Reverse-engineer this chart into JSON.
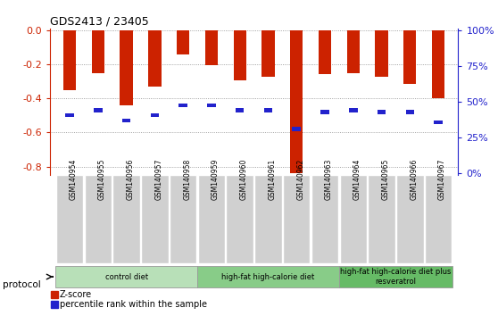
{
  "title": "GDS2413 / 23405",
  "samples": [
    "GSM140954",
    "GSM140955",
    "GSM140956",
    "GSM140957",
    "GSM140958",
    "GSM140959",
    "GSM140960",
    "GSM140961",
    "GSM140962",
    "GSM140963",
    "GSM140964",
    "GSM140965",
    "GSM140966",
    "GSM140967"
  ],
  "zscore": [
    -0.35,
    -0.255,
    -0.44,
    -0.33,
    -0.145,
    -0.205,
    -0.295,
    -0.275,
    -0.84,
    -0.26,
    -0.255,
    -0.275,
    -0.315,
    -0.4
  ],
  "percentile_zscore": [
    -0.5,
    -0.47,
    -0.53,
    -0.5,
    -0.44,
    -0.44,
    -0.47,
    -0.47,
    -0.58,
    -0.48,
    -0.47,
    -0.48,
    -0.48,
    -0.54
  ],
  "zscore_color": "#cc2200",
  "percentile_color": "#2222cc",
  "ylim": [
    -0.84,
    0.0
  ],
  "yticks_left": [
    0.0,
    -0.2,
    -0.4,
    -0.6,
    -0.8
  ],
  "yticks_right": [
    100,
    75,
    50,
    25,
    0
  ],
  "protocol_groups": [
    {
      "label": "control diet",
      "start": 0,
      "end": 5,
      "color": "#b8e0b8"
    },
    {
      "label": "high-fat high-calorie diet",
      "start": 5,
      "end": 10,
      "color": "#88cc88"
    },
    {
      "label": "high-fat high-calorie diet plus\nresveratrol",
      "start": 10,
      "end": 14,
      "color": "#66bb66"
    }
  ],
  "protocol_label": "protocol",
  "legend_zscore": "Z-score",
  "legend_percentile": "percentile rank within the sample",
  "bar_width": 0.45,
  "left_axis_color": "#cc2200",
  "right_axis_color": "#2222cc",
  "bg_color": "#ffffff",
  "grid_color": "#888888",
  "name_bg_color": "#d0d0d0",
  "name_border_color": "#ffffff"
}
